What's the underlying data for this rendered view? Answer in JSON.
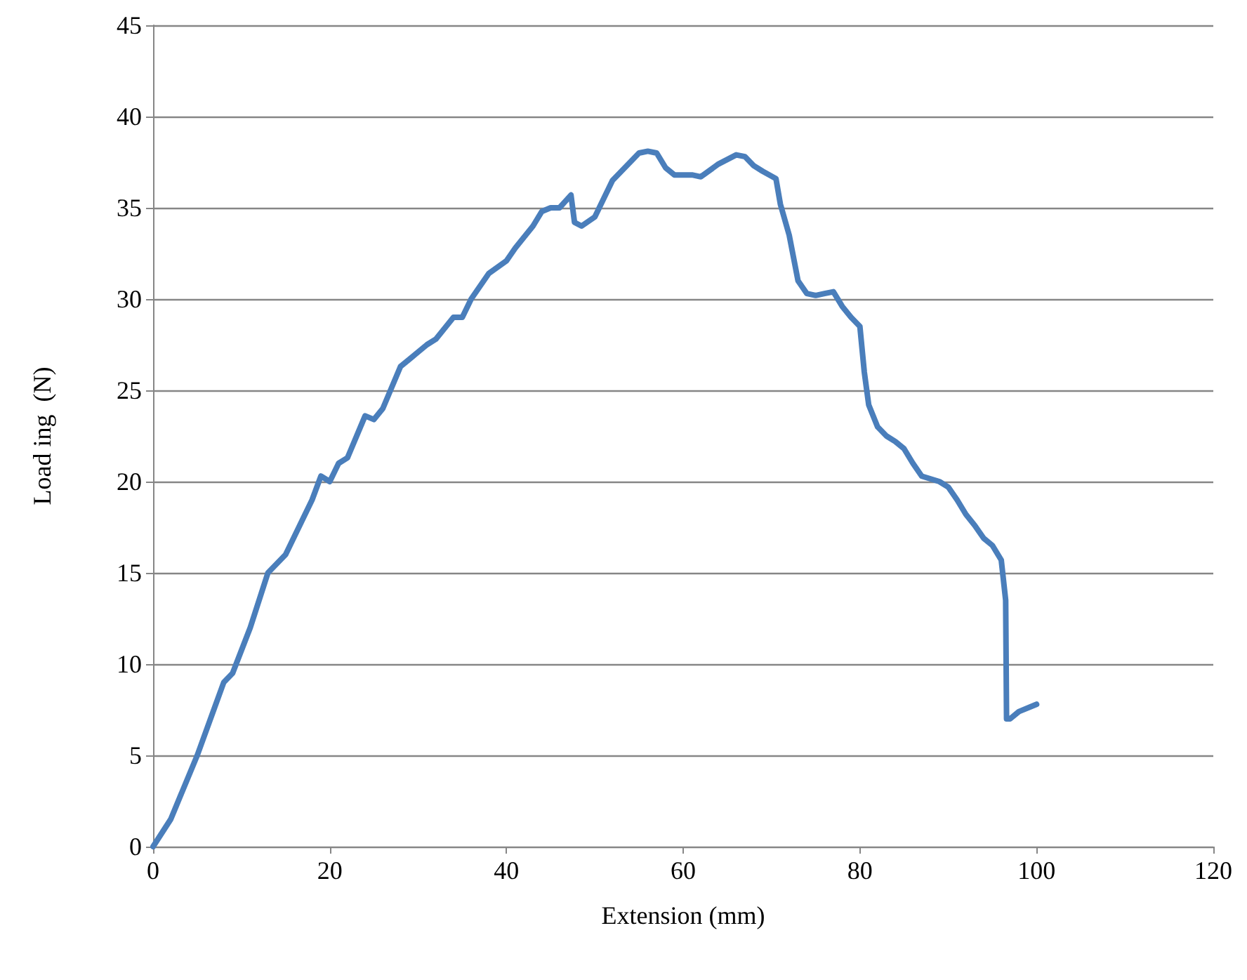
{
  "chart_data": {
    "type": "line",
    "xlabel": "Extension (mm)",
    "ylabel": "Load ing  (N)",
    "series": [
      {
        "color": "#4a7ebb",
        "x": [
          0,
          2,
          5,
          8,
          9,
          11,
          13,
          14,
          15,
          16,
          18,
          19,
          20,
          21,
          22,
          24,
          25,
          26,
          28,
          29,
          31,
          32,
          34,
          35,
          36,
          38,
          40,
          41,
          43,
          44,
          45,
          46,
          47.3,
          47.7,
          48.5,
          50,
          51,
          52,
          53,
          55,
          56,
          57,
          58,
          59,
          61,
          62,
          64,
          66,
          67,
          68,
          69,
          70.5,
          71,
          72,
          73,
          74,
          75,
          76,
          77,
          78,
          79,
          80,
          80.5,
          81,
          82,
          83,
          84,
          85,
          86,
          87,
          89,
          90,
          91,
          92,
          93,
          94,
          95,
          96,
          96.5,
          96.6,
          97,
          98,
          100
        ],
        "values": [
          0,
          1.5,
          5,
          9,
          9.5,
          12,
          15,
          15.5,
          16,
          17,
          19,
          20.3,
          20,
          21,
          21.3,
          23.6,
          23.4,
          24,
          26.3,
          26.7,
          27.5,
          27.8,
          29,
          29,
          30,
          31.4,
          32.1,
          32.8,
          34,
          34.8,
          35,
          35,
          35.7,
          34.2,
          34,
          34.5,
          35.5,
          36.5,
          37,
          38,
          38.1,
          38,
          37.2,
          36.8,
          36.8,
          36.7,
          37.4,
          37.9,
          37.8,
          37.3,
          37,
          36.6,
          35.2,
          33.5,
          31,
          30.3,
          30.2,
          30.3,
          30.4,
          29.6,
          29,
          28.5,
          26,
          24.2,
          23,
          22.5,
          22.2,
          21.8,
          21,
          20.3,
          20,
          19.7,
          19,
          18.2,
          17.6,
          16.9,
          16.5,
          15.7,
          13.5,
          7,
          7,
          7.4,
          7.8
        ]
      }
    ],
    "xlim": [
      0,
      120
    ],
    "xticks": [
      0,
      20,
      40,
      60,
      80,
      100,
      120
    ],
    "ylim": [
      0,
      45
    ],
    "yticks": [
      0,
      5,
      10,
      15,
      20,
      25,
      30,
      35,
      40,
      45
    ],
    "grid": "y",
    "marker": "none",
    "line_style": "solid"
  }
}
